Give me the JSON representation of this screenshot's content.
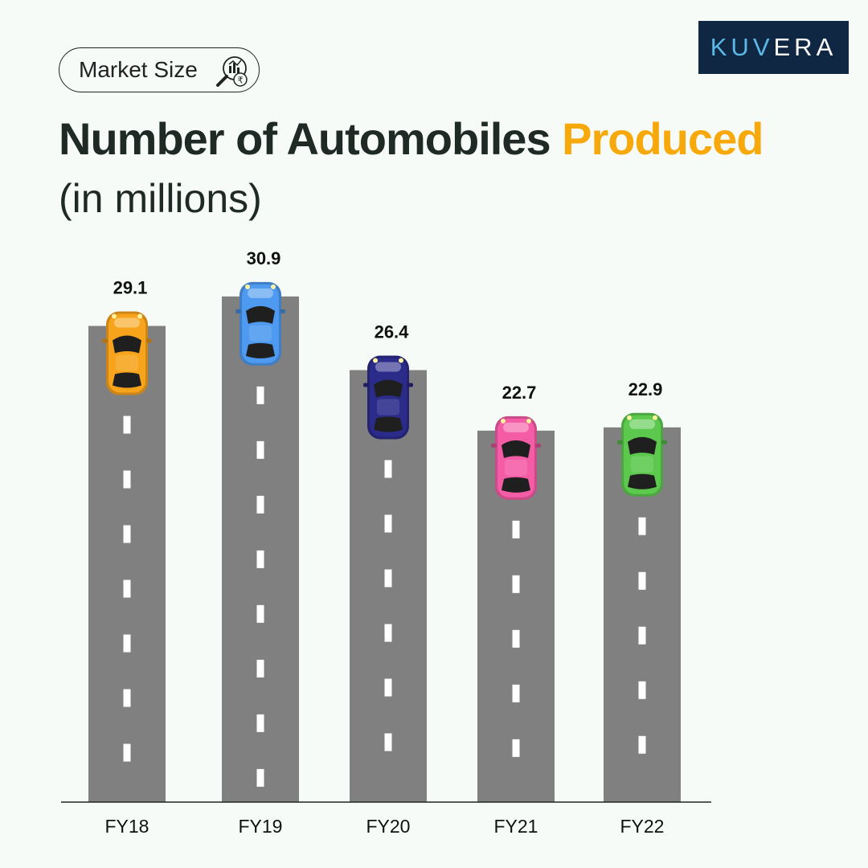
{
  "badge": {
    "label": "Market Size",
    "icon": "search-chart-rupee-icon"
  },
  "brand": {
    "part1": "KUV",
    "part2": "ERA"
  },
  "heading": {
    "title_main": "Number of Automobiles ",
    "title_highlight": "Produced",
    "subtitle": "(in millions)"
  },
  "colors": {
    "highlight": "#f7a90b",
    "road": "#808080",
    "logo_bg": "#0f2743",
    "car_colors": [
      "#f7a41c",
      "#4d9af0",
      "#2b2b8a",
      "#f55ca6",
      "#5cc94e"
    ]
  },
  "chart_data": {
    "type": "bar",
    "title": "Number of Automobiles Produced",
    "subtitle": "(in millions)",
    "categories": [
      "FY18",
      "FY19",
      "FY20",
      "FY21",
      "FY22"
    ],
    "values": [
      29.1,
      30.9,
      26.4,
      22.7,
      22.9
    ],
    "value_labels": [
      "29.1",
      "30.9",
      "26.4",
      "22.7",
      "22.9"
    ],
    "grid": false,
    "legend": "none"
  }
}
